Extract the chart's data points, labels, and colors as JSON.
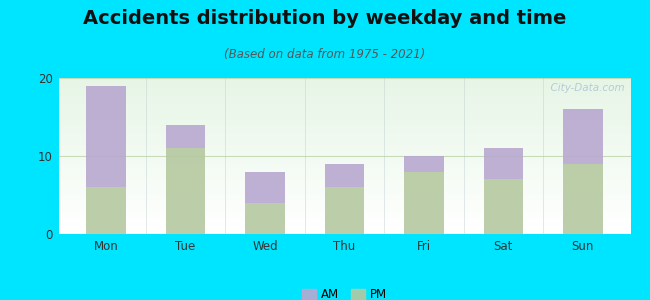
{
  "title": "Accidents distribution by weekday and time",
  "subtitle": "(Based on data from 1975 - 2021)",
  "categories": [
    "Mon",
    "Tue",
    "Wed",
    "Thu",
    "Fri",
    "Sat",
    "Sun"
  ],
  "pm_values": [
    6,
    11,
    4,
    6,
    8,
    7,
    9
  ],
  "am_values": [
    13,
    3,
    4,
    3,
    2,
    4,
    7
  ],
  "am_color": "#b8a8d0",
  "pm_color": "#b5c9a0",
  "background_outer": "#00e5ff",
  "ylim": [
    0,
    20
  ],
  "yticks": [
    0,
    10,
    20
  ],
  "grid_color": "#c8dbb8",
  "title_fontsize": 14,
  "subtitle_fontsize": 8.5,
  "tick_fontsize": 8.5,
  "legend_fontsize": 8.5,
  "watermark_text": "  City-Data.com",
  "watermark_color": "#adc4d4",
  "bar_width": 0.5
}
